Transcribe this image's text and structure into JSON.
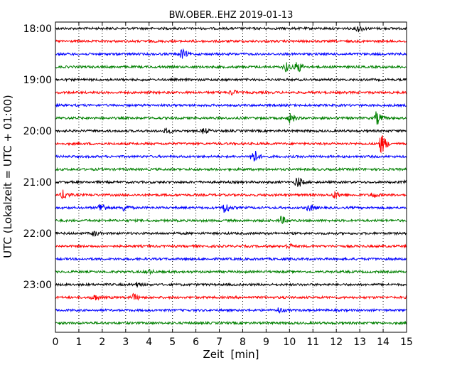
{
  "chart_data": {
    "type": "line",
    "title": "BW.OBER..EHZ 2019-01-13",
    "xlabel": "Zeit  [min]",
    "ylabel": "UTC (Lokalzeit = UTC + 01:00)",
    "xlim": [
      0,
      15
    ],
    "x_ticks": [
      "0",
      "1",
      "2",
      "3",
      "4",
      "5",
      "6",
      "7",
      "8",
      "9",
      "10",
      "11",
      "12",
      "13",
      "14",
      "15"
    ],
    "y_tick_labels": [
      "18:00",
      "19:00",
      "20:00",
      "21:00",
      "22:00",
      "23:00"
    ],
    "grid": "vertical dotted at each minute",
    "trace_colors": [
      "#000000",
      "#ff0000",
      "#0000ff",
      "#008000"
    ],
    "series": [
      {
        "start": "18:00",
        "events": [
          {
            "x": 12.9,
            "amp": 4
          }
        ]
      },
      {
        "start": "18:15",
        "events": []
      },
      {
        "start": "18:30",
        "events": [
          {
            "x": 5.35,
            "amp": 6
          }
        ]
      },
      {
        "start": "18:45",
        "events": [
          {
            "x": 9.8,
            "amp": 6
          },
          {
            "x": 10.3,
            "amp": 7
          }
        ]
      },
      {
        "start": "19:00",
        "events": []
      },
      {
        "start": "19:15",
        "events": [
          {
            "x": 7.5,
            "amp": 3
          }
        ]
      },
      {
        "start": "19:30",
        "events": []
      },
      {
        "start": "19:45",
        "events": [
          {
            "x": 10.0,
            "amp": 6
          },
          {
            "x": 13.7,
            "amp": 8
          }
        ]
      },
      {
        "start": "20:00",
        "events": [
          {
            "x": 4.7,
            "amp": 3
          },
          {
            "x": 6.3,
            "amp": 3
          }
        ]
      },
      {
        "start": "20:15",
        "events": [
          {
            "x": 13.9,
            "amp": 12
          }
        ]
      },
      {
        "start": "20:30",
        "events": [
          {
            "x": 8.4,
            "amp": 10
          }
        ]
      },
      {
        "start": "20:45",
        "events": []
      },
      {
        "start": "21:00",
        "events": [
          {
            "x": 10.3,
            "amp": 7
          },
          {
            "x": 15.0,
            "amp": 4
          }
        ]
      },
      {
        "start": "21:15",
        "events": [
          {
            "x": 0.3,
            "amp": 6
          },
          {
            "x": 11.9,
            "amp": 4
          },
          {
            "x": 13.5,
            "amp": 3
          }
        ]
      },
      {
        "start": "21:30",
        "events": [
          {
            "x": 1.9,
            "amp": 6
          },
          {
            "x": 2.9,
            "amp": 4
          },
          {
            "x": 7.2,
            "amp": 7
          },
          {
            "x": 10.8,
            "amp": 4
          }
        ]
      },
      {
        "start": "21:45",
        "events": [
          {
            "x": 9.6,
            "amp": 5
          }
        ]
      },
      {
        "start": "22:00",
        "events": [
          {
            "x": 1.6,
            "amp": 3
          }
        ]
      },
      {
        "start": "22:15",
        "events": [
          {
            "x": 9.9,
            "amp": 3
          }
        ]
      },
      {
        "start": "22:30",
        "events": []
      },
      {
        "start": "22:45",
        "events": [
          {
            "x": 3.9,
            "amp": 3
          }
        ]
      },
      {
        "start": "23:00",
        "events": [
          {
            "x": 3.4,
            "amp": 3
          }
        ]
      },
      {
        "start": "23:15",
        "events": [
          {
            "x": 1.6,
            "amp": 4
          },
          {
            "x": 3.3,
            "amp": 4
          }
        ]
      },
      {
        "start": "23:30",
        "events": [
          {
            "x": 9.5,
            "amp": 3
          }
        ]
      },
      {
        "start": "23:45",
        "events": []
      }
    ]
  }
}
